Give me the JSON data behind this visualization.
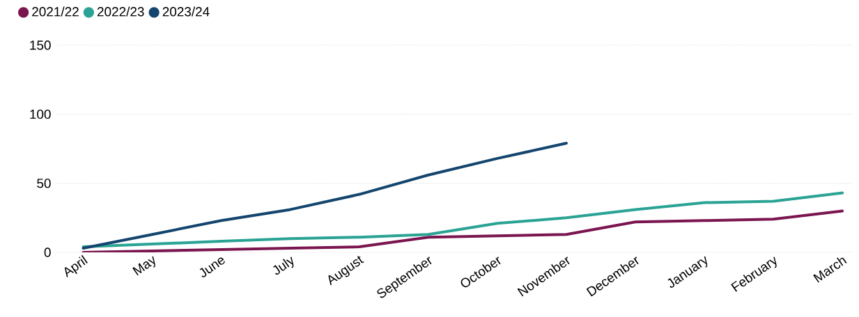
{
  "chart_data": {
    "type": "line",
    "categories": [
      "April",
      "May",
      "June",
      "July",
      "August",
      "September",
      "October",
      "November",
      "December",
      "January",
      "February",
      "March"
    ],
    "series": [
      {
        "name": "2021/22",
        "color": "#7b1550",
        "values": [
          0,
          1,
          2,
          3,
          4,
          11,
          12,
          13,
          22,
          23,
          24,
          30
        ]
      },
      {
        "name": "2022/23",
        "color": "#2aa394",
        "values": [
          4,
          6,
          8,
          10,
          11,
          13,
          21,
          25,
          31,
          36,
          37,
          43
        ]
      },
      {
        "name": "2023/24",
        "color": "#14456e",
        "values": [
          3,
          13,
          23,
          31,
          42,
          56,
          68,
          79,
          null,
          null,
          null,
          null
        ]
      }
    ],
    "ylim": [
      0,
      150
    ],
    "yticks": [
      0,
      50,
      100,
      150
    ],
    "grid": "y",
    "legend": "top left",
    "marker": "none",
    "line_style": "solid"
  }
}
